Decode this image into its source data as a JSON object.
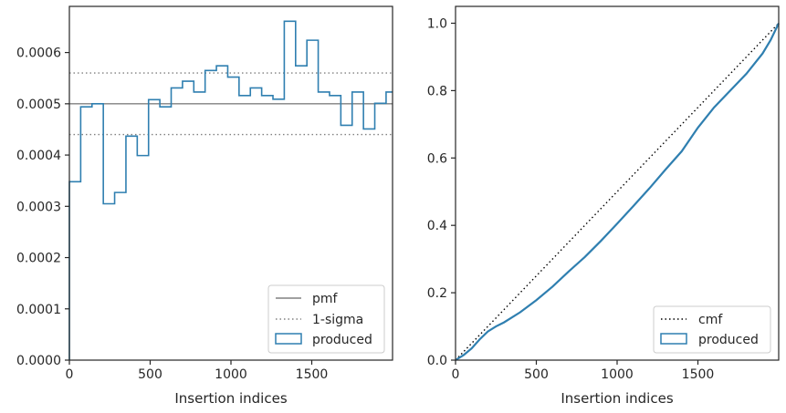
{
  "chart_data": [
    {
      "type": "step-histogram",
      "xlabel": "Insertion indices",
      "ylabel": "",
      "xlim": [
        0,
        2000
      ],
      "ylim": [
        0,
        0.00069
      ],
      "xticks": [
        0,
        500,
        1000,
        1500
      ],
      "xtick_labels": [
        "0",
        "500",
        "1000",
        "1500"
      ],
      "yticks": [
        0,
        0.0001,
        0.0002,
        0.0003,
        0.0004,
        0.0005,
        0.0006
      ],
      "ytick_labels": [
        "0.0000",
        "0.0001",
        "0.0002",
        "0.0003",
        "0.0004",
        "0.0005",
        "0.0006"
      ],
      "grid": false,
      "legend_position": "bottom-right",
      "colors": {
        "produced": "#2f7fb0",
        "reference": "#808080"
      },
      "reference_lines": [
        {
          "name": "pmf",
          "y": 0.0005,
          "style": "solid"
        },
        {
          "name": "1-sigma",
          "y": 0.00056,
          "style": "dotted"
        },
        {
          "name": "1-sigma-lower",
          "y": 0.00044,
          "style": "dotted"
        }
      ],
      "bin_edges": [
        0,
        70,
        140,
        210,
        280,
        350,
        420,
        490,
        560,
        630,
        700,
        770,
        840,
        910,
        980,
        1050,
        1120,
        1190,
        1260,
        1330,
        1400,
        1470,
        1540,
        1610,
        1680,
        1750,
        1820,
        1890,
        1960,
        2000
      ],
      "values": [
        0.000348,
        0.000494,
        0.0005,
        0.000305,
        0.000327,
        0.000437,
        0.000399,
        0.000508,
        0.000494,
        0.000531,
        0.000544,
        0.000523,
        0.000565,
        0.000574,
        0.000552,
        0.000516,
        0.000531,
        0.000516,
        0.000509,
        0.000661,
        0.000574,
        0.000624,
        0.000523,
        0.000516,
        0.000458,
        0.000523,
        0.000451,
        0.000501,
        0.000523
      ],
      "legend": [
        {
          "label": "pmf",
          "kind": "line-solid"
        },
        {
          "label": "1-sigma",
          "kind": "line-dotted"
        },
        {
          "label": "produced",
          "kind": "patch"
        }
      ]
    },
    {
      "type": "line",
      "xlabel": "Insertion indices",
      "ylabel": "",
      "xlim": [
        0,
        2000
      ],
      "ylim": [
        0,
        1.05
      ],
      "xticks": [
        0,
        500,
        1000,
        1500
      ],
      "xtick_labels": [
        "0",
        "500",
        "1000",
        "1500"
      ],
      "yticks": [
        0,
        0.2,
        0.4,
        0.6,
        0.8,
        1.0
      ],
      "ytick_labels": [
        "0.0",
        "0.2",
        "0.4",
        "0.6",
        "0.8",
        "1.0"
      ],
      "grid": false,
      "legend_position": "bottom-right",
      "colors": {
        "produced": "#2f7fb0",
        "cmf": "#000000"
      },
      "series": [
        {
          "name": "cmf",
          "style": "dotted",
          "x": [
            0,
            2000
          ],
          "y": [
            0,
            1.0
          ]
        },
        {
          "name": "produced",
          "style": "solid",
          "x": [
            0,
            50,
            100,
            150,
            200,
            250,
            300,
            350,
            400,
            450,
            500,
            600,
            700,
            800,
            900,
            1000,
            1100,
            1200,
            1300,
            1400,
            1500,
            1600,
            1700,
            1800,
            1900,
            1950,
            2000
          ],
          "y": [
            0,
            0.015,
            0.035,
            0.062,
            0.085,
            0.1,
            0.112,
            0.127,
            0.142,
            0.16,
            0.178,
            0.218,
            0.263,
            0.306,
            0.354,
            0.405,
            0.457,
            0.51,
            0.566,
            0.62,
            0.69,
            0.75,
            0.8,
            0.85,
            0.91,
            0.95,
            1.0
          ]
        }
      ],
      "legend": [
        {
          "label": "cmf",
          "kind": "line-dotted"
        },
        {
          "label": "produced",
          "kind": "patch"
        }
      ]
    }
  ]
}
